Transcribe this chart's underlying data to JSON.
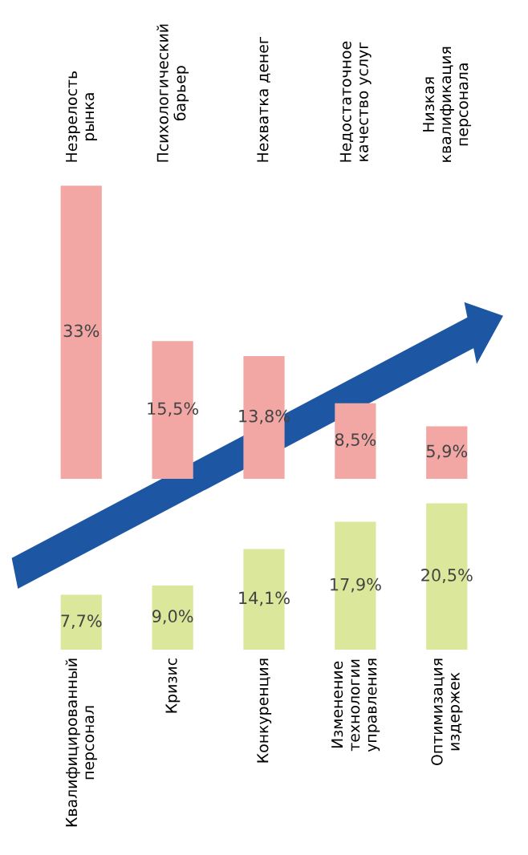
{
  "chart_data": [
    {
      "type": "bar",
      "categories": [
        "Незрелость\nрынка",
        "Психологический\nбарьер",
        "Нехватка денег",
        "Недостаточное\nкачество услуг",
        "Низкая\nквалификация\nперсонала"
      ],
      "values": [
        33,
        15.5,
        13.8,
        8.5,
        5.9
      ],
      "value_labels": [
        "33%",
        "15,5%",
        "13,8%",
        "8,5%",
        "5,9%"
      ],
      "color": "#f2a7a5",
      "tick_labels": "x"
    },
    {
      "type": "bar",
      "categories": [
        "Квалифицированный\nперсонал",
        "Кризис",
        "Конкуренция",
        "Изменение\nтехнологии\nуправления",
        "Оптимизация\nиздержек"
      ],
      "values": [
        7.7,
        9.0,
        14.1,
        17.9,
        20.5
      ],
      "value_labels": [
        "7,7%",
        "9,0%",
        "14,1%",
        "17,9%",
        "20,5%"
      ],
      "color": "#dbe79a",
      "tick_labels": "x"
    }
  ]
}
